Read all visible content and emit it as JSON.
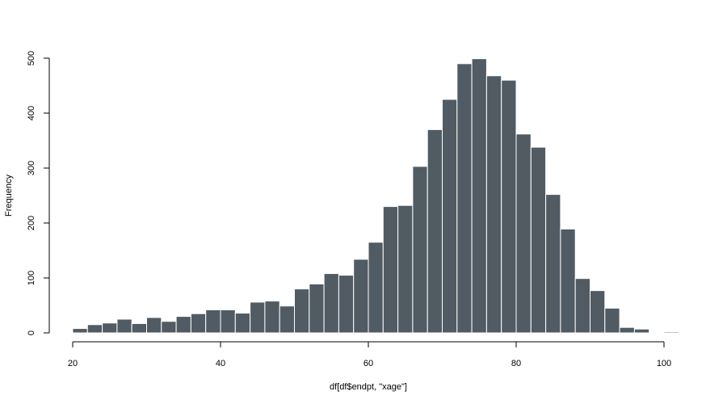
{
  "chart_data": {
    "type": "bar",
    "subtype": "histogram",
    "xlabel": "df[df$endpt, \"xage\"]",
    "ylabel": "Frequency",
    "xlim": [
      20,
      100
    ],
    "ylim": [
      0,
      500
    ],
    "x_ticks": [
      20,
      40,
      60,
      80,
      100
    ],
    "y_ticks": [
      0,
      100,
      200,
      300,
      400,
      500
    ],
    "bin_width": 2,
    "bin_starts": [
      20,
      22,
      24,
      26,
      28,
      30,
      32,
      34,
      36,
      38,
      40,
      42,
      44,
      46,
      48,
      50,
      52,
      54,
      56,
      58,
      60,
      62,
      64,
      66,
      68,
      70,
      72,
      74,
      76,
      78,
      80,
      82,
      84,
      86,
      88,
      90,
      92,
      94,
      96,
      100
    ],
    "values": [
      8,
      15,
      18,
      25,
      17,
      28,
      21,
      30,
      35,
      42,
      42,
      36,
      56,
      58,
      49,
      80,
      89,
      108,
      105,
      134,
      165,
      230,
      232,
      303,
      370,
      425,
      490,
      499,
      468,
      460,
      362,
      338,
      252,
      189,
      99,
      77,
      45,
      10,
      7,
      2
    ],
    "grid": false,
    "bar_color": "#515b63",
    "bar_edge_color": "#ffffff",
    "background_color": "#ffffff"
  }
}
